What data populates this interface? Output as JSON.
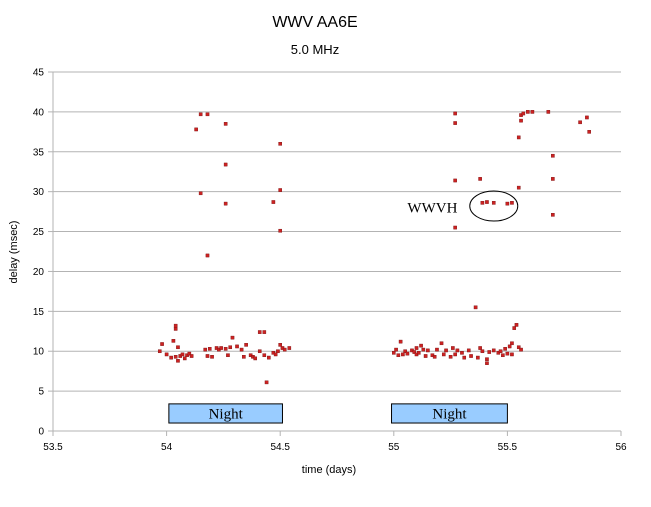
{
  "chart_data": {
    "type": "scatter",
    "title": "WWV AA6E",
    "subtitle": "5.0 MHz",
    "xlabel": "time (days)",
    "ylabel": "delay (msec)",
    "xlim": [
      53.5,
      56
    ],
    "ylim": [
      0,
      45
    ],
    "xticks": [
      "53.5",
      "54",
      "54.5",
      "55",
      "55.5",
      "56"
    ],
    "yticks": [
      "0",
      "5",
      "10",
      "15",
      "20",
      "25",
      "30",
      "35",
      "40",
      "45"
    ],
    "grid": "horizontal",
    "legend": "none",
    "marker_color": "#cc2222",
    "annotations": {
      "night_boxes": [
        {
          "label": "Night",
          "x_start": 54.01,
          "x_end": 54.51,
          "y_low": 1.0,
          "y_high": 3.4,
          "fill": "#99ccff"
        },
        {
          "label": "Night",
          "x_start": 54.99,
          "x_end": 55.5,
          "y_low": 1.0,
          "y_high": 3.4,
          "fill": "#99ccff"
        }
      ],
      "callout": {
        "label": "WWVH",
        "x": 55.06,
        "y": 28.0,
        "circle_center_x": 55.44,
        "circle_center_y": 28.2
      }
    },
    "series": [
      {
        "values": [
          [
            54.13,
            37.8
          ],
          [
            54.15,
            39.7
          ],
          [
            54.18,
            39.7
          ],
          [
            54.26,
            38.5
          ],
          [
            54.26,
            33.4
          ],
          [
            54.15,
            29.8
          ],
          [
            54.26,
            28.5
          ],
          [
            54.18,
            22.0
          ],
          [
            54.47,
            28.7
          ],
          [
            54.5,
            36.0
          ],
          [
            54.5,
            30.2
          ],
          [
            54.5,
            25.1
          ],
          [
            53.97,
            10.0
          ],
          [
            53.98,
            10.9
          ],
          [
            54.0,
            9.6
          ],
          [
            54.02,
            9.2
          ],
          [
            54.03,
            11.3
          ],
          [
            54.04,
            9.3
          ],
          [
            54.04,
            12.8
          ],
          [
            54.04,
            13.2
          ],
          [
            54.05,
            8.8
          ],
          [
            54.05,
            10.5
          ],
          [
            54.06,
            9.4
          ],
          [
            54.07,
            9.6
          ],
          [
            54.08,
            9.1
          ],
          [
            54.09,
            9.5
          ],
          [
            54.1,
            9.7
          ],
          [
            54.11,
            9.4
          ],
          [
            54.17,
            10.2
          ],
          [
            54.18,
            9.4
          ],
          [
            54.19,
            10.3
          ],
          [
            54.2,
            9.3
          ],
          [
            54.22,
            10.4
          ],
          [
            54.23,
            10.2
          ],
          [
            54.24,
            10.4
          ],
          [
            54.26,
            10.3
          ],
          [
            54.27,
            9.5
          ],
          [
            54.28,
            10.5
          ],
          [
            54.29,
            11.7
          ],
          [
            54.31,
            10.6
          ],
          [
            54.33,
            10.2
          ],
          [
            54.34,
            9.3
          ],
          [
            54.35,
            10.8
          ],
          [
            54.37,
            9.5
          ],
          [
            54.38,
            9.3
          ],
          [
            54.39,
            9.1
          ],
          [
            54.41,
            10.0
          ],
          [
            54.41,
            12.4
          ],
          [
            54.43,
            12.4
          ],
          [
            54.43,
            9.5
          ],
          [
            54.44,
            6.1
          ],
          [
            54.45,
            9.2
          ],
          [
            54.47,
            9.8
          ],
          [
            54.48,
            9.6
          ],
          [
            54.49,
            10.0
          ],
          [
            54.5,
            10.8
          ],
          [
            54.51,
            10.4
          ],
          [
            54.52,
            10.2
          ],
          [
            54.54,
            10.4
          ],
          [
            55.27,
            38.6
          ],
          [
            55.27,
            39.8
          ],
          [
            55.27,
            31.4
          ],
          [
            55.27,
            25.5
          ],
          [
            55.38,
            31.6
          ],
          [
            55.39,
            28.6
          ],
          [
            55.41,
            28.7
          ],
          [
            55.44,
            28.6
          ],
          [
            55.5,
            28.5
          ],
          [
            55.52,
            28.6
          ],
          [
            55.55,
            30.5
          ],
          [
            55.55,
            36.8
          ],
          [
            55.56,
            38.9
          ],
          [
            55.56,
            39.6
          ],
          [
            55.57,
            39.8
          ],
          [
            55.59,
            40.0
          ],
          [
            55.61,
            40.0
          ],
          [
            55.68,
            40.0
          ],
          [
            55.7,
            34.5
          ],
          [
            55.7,
            31.6
          ],
          [
            55.7,
            27.1
          ],
          [
            55.82,
            38.7
          ],
          [
            55.85,
            39.3
          ],
          [
            55.86,
            37.5
          ],
          [
            55.0,
            9.8
          ],
          [
            55.01,
            10.2
          ],
          [
            55.02,
            9.5
          ],
          [
            55.03,
            11.2
          ],
          [
            55.04,
            9.6
          ],
          [
            55.05,
            10.0
          ],
          [
            55.06,
            9.7
          ],
          [
            55.08,
            10.1
          ],
          [
            55.09,
            9.9
          ],
          [
            55.1,
            10.4
          ],
          [
            55.1,
            9.6
          ],
          [
            55.11,
            9.8
          ],
          [
            55.12,
            10.7
          ],
          [
            55.13,
            10.2
          ],
          [
            55.14,
            9.4
          ],
          [
            55.15,
            10.1
          ],
          [
            55.17,
            9.5
          ],
          [
            55.18,
            9.3
          ],
          [
            55.19,
            10.2
          ],
          [
            55.21,
            11.0
          ],
          [
            55.22,
            9.6
          ],
          [
            55.23,
            10.1
          ],
          [
            55.25,
            9.3
          ],
          [
            55.26,
            10.4
          ],
          [
            55.27,
            9.6
          ],
          [
            55.28,
            10.1
          ],
          [
            55.3,
            9.8
          ],
          [
            55.31,
            9.2
          ],
          [
            55.33,
            10.1
          ],
          [
            55.34,
            9.4
          ],
          [
            55.36,
            15.5
          ],
          [
            55.37,
            9.2
          ],
          [
            55.38,
            10.4
          ],
          [
            55.39,
            10.0
          ],
          [
            55.41,
            9.0
          ],
          [
            55.41,
            8.5
          ],
          [
            55.42,
            9.9
          ],
          [
            55.44,
            10.1
          ],
          [
            55.46,
            9.8
          ],
          [
            55.47,
            10.0
          ],
          [
            55.48,
            9.5
          ],
          [
            55.49,
            10.3
          ],
          [
            55.5,
            9.7
          ],
          [
            55.51,
            10.6
          ],
          [
            55.52,
            9.6
          ],
          [
            55.52,
            11.0
          ],
          [
            55.53,
            12.9
          ],
          [
            55.54,
            13.3
          ],
          [
            55.55,
            10.5
          ],
          [
            55.56,
            10.2
          ]
        ]
      }
    ]
  }
}
